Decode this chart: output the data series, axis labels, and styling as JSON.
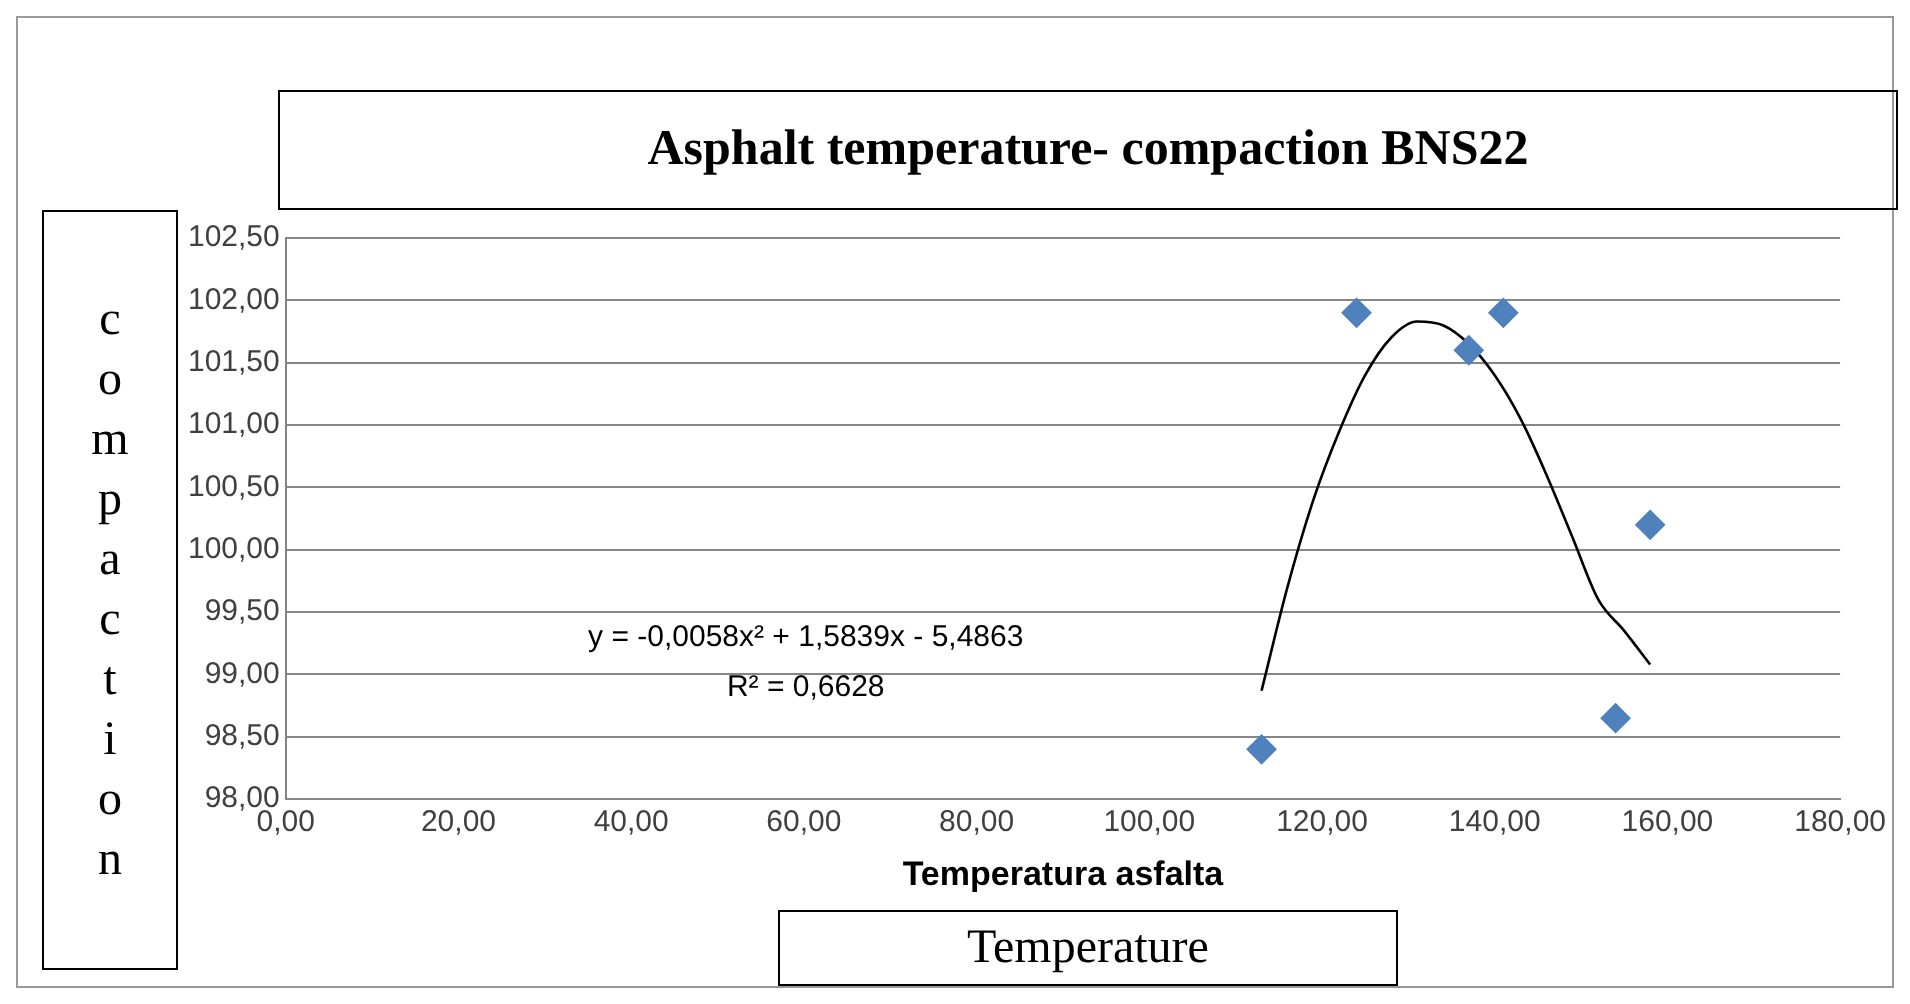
{
  "chart_data": {
    "type": "scatter",
    "title": "Asphalt temperature- compaction BNS22",
    "xlabel": "Temperatura asfalta",
    "ylabel": "compaction",
    "annotations": [
      "y = -0,0058x² + 1,5839x - 5,4863",
      "R² = 0,6628",
      "Temperature"
    ],
    "xlim": [
      0,
      180
    ],
    "xticks": [
      {
        "value": 0,
        "label": "0,00"
      },
      {
        "value": 20,
        "label": "20,00"
      },
      {
        "value": 40,
        "label": "40,00"
      },
      {
        "value": 60,
        "label": "60,00"
      },
      {
        "value": 80,
        "label": "80,00"
      },
      {
        "value": 100,
        "label": "100,00"
      },
      {
        "value": 120,
        "label": "120,00"
      },
      {
        "value": 140,
        "label": "140,00"
      },
      {
        "value": 160,
        "label": "160,00"
      },
      {
        "value": 180,
        "label": "180,00"
      }
    ],
    "ylim": [
      98,
      102.5
    ],
    "yticks": [
      {
        "value": 98,
        "label": "98,00"
      },
      {
        "value": 98.5,
        "label": "98,50"
      },
      {
        "value": 99,
        "label": "99,00"
      },
      {
        "value": 99.5,
        "label": "99,50"
      },
      {
        "value": 100,
        "label": "100,00"
      },
      {
        "value": 100.5,
        "label": "100,50"
      },
      {
        "value": 101,
        "label": "101,00"
      },
      {
        "value": 101.5,
        "label": "101,50"
      },
      {
        "value": 102,
        "label": "102,00"
      },
      {
        "value": 102.5,
        "label": "102,50"
      }
    ],
    "grid": "y",
    "legend": false,
    "marker": "diamond",
    "series": [
      {
        "color": "#4f81bd",
        "x": [
          113,
          124,
          137,
          141,
          154,
          158
        ],
        "values": [
          98.4,
          101.9,
          101.6,
          101.9,
          98.65,
          100.2
        ]
      },
      {
        "type": "line",
        "color": "#000000",
        "marker": "none",
        "x": [
          113,
          116,
          119,
          122,
          125,
          128,
          131,
          134,
          137,
          140,
          143,
          146,
          149,
          152,
          155,
          158
        ],
        "values": [
          98.87,
          99.7,
          100.4,
          100.95,
          101.4,
          101.7,
          101.83,
          101.8,
          101.65,
          101.4,
          101.05,
          100.6,
          100.1,
          99.6,
          99.35,
          99.08
        ]
      }
    ]
  }
}
